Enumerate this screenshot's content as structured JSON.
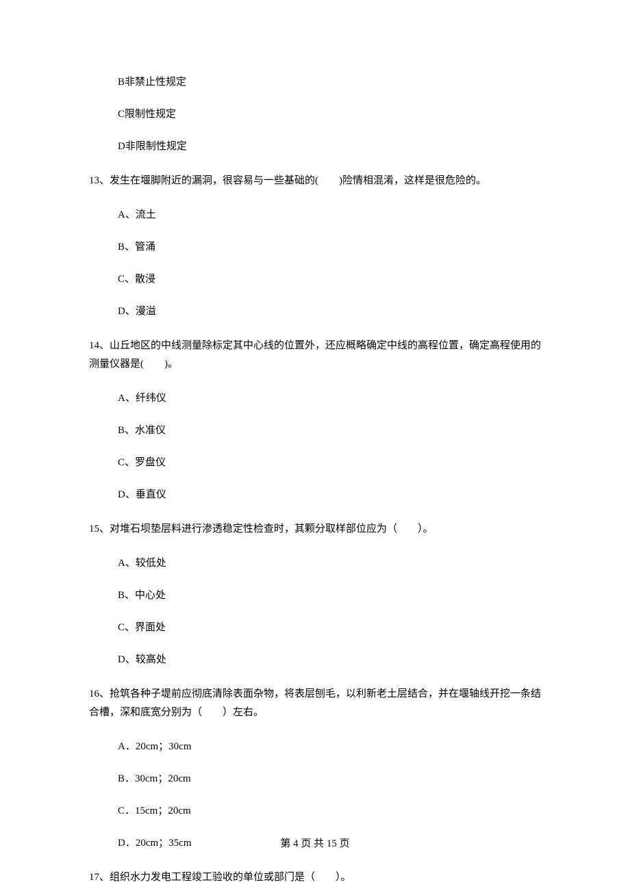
{
  "options_top": [
    "B非禁止性规定",
    "C限制性规定",
    "D非限制性规定"
  ],
  "q13": {
    "stem": "13、发生在堰脚附近的漏洞，很容易与一些基础的(　　)险情相混淆，这样是很危险的。",
    "options": [
      "A、流土",
      "B、管涌",
      "C、散浸",
      "D、漫溢"
    ]
  },
  "q14": {
    "stem": "14、山丘地区的中线测量除标定其中心线的位置外，还应概略确定中线的高程位置，确定高程使用的测量仪器是(　　)。",
    "options": [
      "A、纤纬仪",
      "B、水准仪",
      "C、罗盘仪",
      "D、垂直仪"
    ]
  },
  "q15": {
    "stem": "15、对堆石坝垫层料进行渗透稳定性检查时，其颗分取样部位应为（　　）。",
    "options": [
      "A、较低处",
      "B、中心处",
      "C、界面处",
      "D、较高处"
    ]
  },
  "q16": {
    "stem": "16、抢筑各种子堤前应彻底清除表面杂物，将表层刨毛，以利新老土层结合，并在堰轴线开挖一条结合槽，深和底宽分别为（　　）左右。",
    "options": [
      "A．20cm；30cm",
      "B．30cm；20cm",
      "C．15cm；20cm",
      "D．20cm；35cm"
    ]
  },
  "q17": {
    "stem": "17、组织水力发电工程竣工验收的单位或部门是（　　）。"
  },
  "footer": "第 4 页 共 15 页"
}
